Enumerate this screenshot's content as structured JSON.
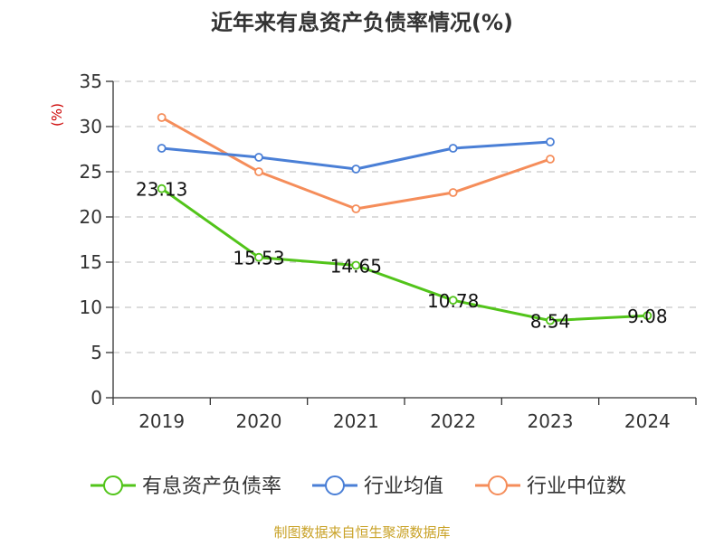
{
  "chart_data": {
    "type": "line",
    "title": "近年来有息资产负债率情况(%)",
    "ylabel": "(%)",
    "xlabel": "",
    "categories": [
      "2019",
      "2020",
      "2021",
      "2022",
      "2023",
      "2024"
    ],
    "ylim": [
      0,
      35
    ],
    "yticks": [
      0,
      5,
      10,
      15,
      20,
      25,
      30,
      35
    ],
    "grid": true,
    "legend_position": "bottom",
    "series": [
      {
        "name": "有息资产负债率",
        "color": "#52c41a",
        "values": [
          23.13,
          15.53,
          14.65,
          10.78,
          8.54,
          9.08
        ],
        "labels": [
          "23.13",
          "15.53",
          "14.65",
          "10.78",
          "8.54",
          "9.08"
        ]
      },
      {
        "name": "行业均值",
        "color": "#4a7fd6",
        "values": [
          27.6,
          26.6,
          25.3,
          27.6,
          28.3,
          null
        ]
      },
      {
        "name": "行业中位数",
        "color": "#f58d5a",
        "values": [
          31.0,
          25.0,
          20.9,
          22.7,
          26.4,
          null
        ]
      }
    ]
  },
  "source_note": "制图数据来自恒生聚源数据库",
  "colors": {
    "title": "#333333",
    "ylabel": "#cc0000",
    "source": "#c9a227",
    "grid": "#c8c8c8",
    "axis": "#333333"
  }
}
